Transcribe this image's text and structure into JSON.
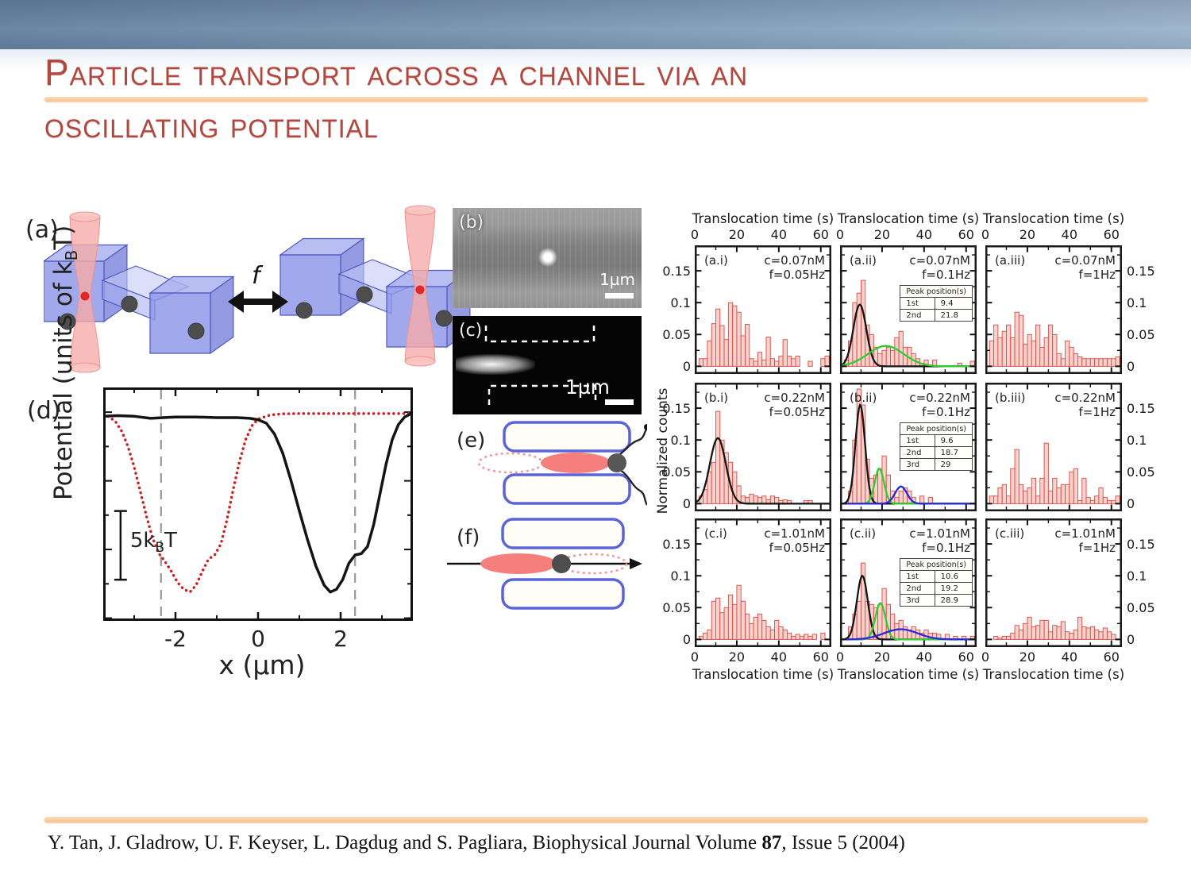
{
  "slide": {
    "title_line1": "Particle transport across a channel via an",
    "title_line2": "oscillating potential",
    "citation_prefix": "Y. Tan, J. Gladrow, U. F. Keyser, L. Dagdug and S. Pagliara, Biophysical Journal Volume ",
    "citation_volume": "87",
    "citation_suffix": ", Issue 5 (2004)",
    "title_color": "#b2473f",
    "accent_rule_color": "#f4bf8b",
    "header_colors": [
      "#64809f",
      "#9ab3ca"
    ]
  },
  "figure": {
    "panel_a": {
      "label": "(a)",
      "frequency_label": "f"
    },
    "panel_b": {
      "label": "(b)",
      "scalebar_label": "1µm"
    },
    "panel_c": {
      "label": "(c)",
      "scalebar_label": "1µm"
    },
    "panel_d": {
      "label": "(d)"
    },
    "panel_e": {
      "label": "(e)"
    },
    "panel_f": {
      "label": "(f)"
    }
  },
  "chart_data": [
    {
      "id": "optical-potential",
      "type": "line",
      "title": "",
      "xlabel": "x (µm)",
      "ylabel_pre": "Potential (units of k",
      "ylabel_sub": "B",
      "ylabel_post": "T)",
      "xlim": [
        -3.75,
        3.75
      ],
      "ylim": [
        -15.2,
        1.8
      ],
      "xticks": [
        {
          "v": -2,
          "label": "-2"
        },
        {
          "v": 0,
          "label": "0"
        },
        {
          "v": 2,
          "label": "2"
        }
      ],
      "xminor": [
        -3,
        -1,
        1,
        3
      ],
      "dashed_vlines": [
        -2.35,
        2.35
      ],
      "scale_bar": {
        "x": -3.33,
        "from": -7.2,
        "to": -12.2,
        "label_pre": "5k",
        "label_sub": "B",
        "label_post": "T"
      },
      "grid": false,
      "series": [
        {
          "name": "potential trap left (red dotted)",
          "color": "#cc2020",
          "style": "dotted",
          "points": [
            [
              -3.75,
              -0.2
            ],
            [
              -3.6,
              -0.35
            ],
            [
              -3.45,
              -0.7
            ],
            [
              -3.3,
              -1.4
            ],
            [
              -3.15,
              -2.5
            ],
            [
              -3.0,
              -4.0
            ],
            [
              -2.85,
              -5.8
            ],
            [
              -2.7,
              -7.6
            ],
            [
              -2.55,
              -9.2
            ],
            [
              -2.4,
              -10.3
            ],
            [
              -2.25,
              -10.9
            ],
            [
              -2.1,
              -11.6
            ],
            [
              -1.95,
              -12.4
            ],
            [
              -1.8,
              -12.9
            ],
            [
              -1.65,
              -13.1
            ],
            [
              -1.5,
              -12.6
            ],
            [
              -1.35,
              -11.6
            ],
            [
              -1.2,
              -10.7
            ],
            [
              -1.05,
              -10.4
            ],
            [
              -0.9,
              -9.6
            ],
            [
              -0.75,
              -7.8
            ],
            [
              -0.6,
              -5.6
            ],
            [
              -0.45,
              -3.6
            ],
            [
              -0.3,
              -2.0
            ],
            [
              -0.15,
              -1.0
            ],
            [
              0.0,
              -0.5
            ],
            [
              0.3,
              -0.2
            ],
            [
              0.6,
              -0.12
            ],
            [
              1.0,
              -0.1
            ],
            [
              1.5,
              -0.1
            ],
            [
              2.0,
              -0.1
            ],
            [
              2.5,
              -0.1
            ],
            [
              3.0,
              -0.1
            ],
            [
              3.5,
              -0.1
            ],
            [
              3.75,
              -0.1
            ]
          ]
        },
        {
          "name": "potential trap right (black solid)",
          "color": "#141414",
          "style": "solid",
          "points": [
            [
              -3.75,
              -0.3
            ],
            [
              -3.4,
              -0.25
            ],
            [
              -3.0,
              -0.3
            ],
            [
              -2.6,
              -0.45
            ],
            [
              -2.3,
              -0.4
            ],
            [
              -2.0,
              -0.35
            ],
            [
              -1.5,
              -0.35
            ],
            [
              -1.0,
              -0.4
            ],
            [
              -0.5,
              -0.4
            ],
            [
              -0.2,
              -0.45
            ],
            [
              0.0,
              -0.55
            ],
            [
              0.2,
              -0.8
            ],
            [
              0.4,
              -1.6
            ],
            [
              0.6,
              -3.0
            ],
            [
              0.8,
              -5.0
            ],
            [
              1.0,
              -7.2
            ],
            [
              1.2,
              -9.3
            ],
            [
              1.4,
              -11.2
            ],
            [
              1.6,
              -12.6
            ],
            [
              1.75,
              -13.1
            ],
            [
              1.9,
              -12.9
            ],
            [
              2.05,
              -12.2
            ],
            [
              2.2,
              -11.0
            ],
            [
              2.35,
              -10.4
            ],
            [
              2.5,
              -10.3
            ],
            [
              2.65,
              -9.8
            ],
            [
              2.8,
              -8.2
            ],
            [
              2.95,
              -6.0
            ],
            [
              3.1,
              -3.8
            ],
            [
              3.25,
              -2.0
            ],
            [
              3.4,
              -0.9
            ],
            [
              3.55,
              -0.35
            ],
            [
              3.7,
              -0.12
            ],
            [
              3.75,
              -0.05
            ]
          ]
        }
      ]
    },
    {
      "id": "translocation-histograms",
      "type": "bar",
      "xlabel": "Translocation time (s)",
      "ylabel": "Normalized counts",
      "xlim": [
        0,
        65
      ],
      "ylim": [
        -0.012,
        0.19
      ],
      "bin_width": 2,
      "xticks": [
        0,
        20,
        40,
        60
      ],
      "xminor": [
        10,
        30,
        50
      ],
      "yticks": [
        {
          "v": 0,
          "label": "0"
        },
        {
          "v": 0.05,
          "label": "0.05"
        },
        {
          "v": 0.1,
          "label": "0.1"
        },
        {
          "v": 0.15,
          "label": "0.15"
        }
      ],
      "yminor": [
        0.025,
        0.075,
        0.125,
        0.175
      ],
      "bar_fill": "#f9d2cd",
      "bar_edge": "#dc4a42",
      "panels": [
        {
          "label": "(a.i)",
          "conc": "c=0.07nM",
          "freq": "f=0.05Hz",
          "values": [
            0,
            0.012,
            0.012,
            0.04,
            0.067,
            0.09,
            0.064,
            0.042,
            0.1,
            0.095,
            0.085,
            0.048,
            0.066,
            0.012,
            0.008,
            0.022,
            0.01,
            0.046,
            0.012,
            0.008,
            0.016,
            0.042,
            0.016,
            0.012,
            0.016,
            0,
            0,
            0.008,
            0,
            0,
            0.012,
            0.016
          ]
        },
        {
          "label": "(a.ii)",
          "conc": "c=0.07nM",
          "freq": "f=0.1Hz",
          "values": [
            0,
            0.01,
            0.04,
            0.1,
            0.115,
            0.135,
            0.065,
            0.05,
            0.03,
            0.02,
            0.025,
            0.03,
            0.025,
            0.045,
            0.055,
            0.03,
            0.03,
            0.02,
            0.012,
            0.005,
            0.01,
            0,
            0.01,
            0,
            0,
            0,
            0,
            0,
            0.005,
            0,
            0,
            0.008
          ],
          "fits": [
            {
              "color": "#141414",
              "amp": 0.097,
              "center": 9.4,
              "sigma": 3.1
            },
            {
              "color": "#2ecc2e",
              "amp": 0.032,
              "center": 21.8,
              "sigma": 8.5
            }
          ],
          "peak_table": {
            "header": "Peak position(s)",
            "rows": [
              [
                "1st",
                "9.4"
              ],
              [
                "2nd",
                "21.8"
              ]
            ]
          }
        },
        {
          "label": "(a.iii)",
          "conc": "c=0.07nM",
          "freq": "f=1Hz",
          "values": [
            0,
            0.04,
            0.065,
            0.045,
            0.055,
            0.065,
            0.045,
            0.085,
            0.08,
            0.035,
            0.05,
            0.04,
            0.065,
            0.03,
            0.045,
            0.065,
            0.05,
            0.02,
            0.012,
            0.04,
            0.03,
            0.02,
            0.015,
            0.012,
            0.012,
            0.012,
            0.012,
            0.012,
            0.012,
            0.012,
            0.012,
            0.015
          ]
        },
        {
          "label": "(b.i)",
          "conc": "c=0.22nM",
          "freq": "f=0.05Hz",
          "values": [
            0,
            0.012,
            0.022,
            0.05,
            0.065,
            0.145,
            0.1,
            0.08,
            0.065,
            0.05,
            0.028,
            0.012,
            0.01,
            0.015,
            0.012,
            0.01,
            0.012,
            0.006,
            0.012,
            0.01,
            0.005,
            0.006,
            0.005,
            0,
            0,
            0,
            0.005,
            0.005,
            0,
            0,
            0,
            0
          ],
          "fits": [
            {
              "color": "#141414",
              "amp": 0.103,
              "center": 11,
              "sigma": 3.8
            }
          ]
        },
        {
          "label": "(b.ii)",
          "conc": "c=0.22nM",
          "freq": "f=0.1Hz",
          "values": [
            0,
            0,
            0.02,
            0.1,
            0.18,
            0.155,
            0.07,
            0.04,
            0.045,
            0.055,
            0.075,
            0.045,
            0.02,
            0.01,
            0.02,
            0.025,
            0.02,
            0.01,
            0,
            0.012,
            0,
            0.01,
            0,
            0,
            0,
            0,
            0,
            0,
            0,
            0,
            0,
            0
          ],
          "fits": [
            {
              "color": "#141414",
              "amp": 0.155,
              "center": 9.6,
              "sigma": 2.3
            },
            {
              "color": "#2ecc2e",
              "amp": 0.055,
              "center": 18.7,
              "sigma": 2.2
            },
            {
              "color": "#2828d8",
              "amp": 0.027,
              "center": 29,
              "sigma": 2.8
            }
          ],
          "peak_table": {
            "header": "Peak position(s)",
            "rows": [
              [
                "1st",
                "9.6"
              ],
              [
                "2nd",
                "18.7"
              ],
              [
                "3rd",
                "29"
              ]
            ]
          }
        },
        {
          "label": "(b.iii)",
          "conc": "c=0.22nM",
          "freq": "f=1Hz",
          "values": [
            0,
            0.012,
            0.012,
            0.025,
            0.03,
            0.012,
            0.055,
            0.085,
            0.03,
            0.02,
            0.025,
            0.04,
            0.012,
            0.04,
            0.095,
            0.02,
            0.04,
            0.025,
            0.03,
            0.03,
            0.05,
            0.055,
            0.005,
            0.04,
            0.01,
            0.005,
            0.012,
            0.025,
            0.01,
            0.005,
            0.005,
            0.012
          ]
        },
        {
          "label": "(c.i)",
          "conc": "c=1.01nM",
          "freq": "f=0.05Hz",
          "values": [
            0,
            0.005,
            0.01,
            0.015,
            0.06,
            0.065,
            0.042,
            0.05,
            0.07,
            0.055,
            0.085,
            0.06,
            0.04,
            0.025,
            0.035,
            0.04,
            0.03,
            0.02,
            0.015,
            0.03,
            0.02,
            0.015,
            0.01,
            0.005,
            0.008,
            0.005,
            0.008,
            0.005,
            0.008,
            0,
            0.01,
            0
          ]
        },
        {
          "label": "(c.ii)",
          "conc": "c=1.01nM",
          "freq": "f=0.1Hz",
          "values": [
            0,
            0,
            0.02,
            0.04,
            0.06,
            0.12,
            0.06,
            0.055,
            0.05,
            0.055,
            0.08,
            0.055,
            0.04,
            0.025,
            0.03,
            0.02,
            0.015,
            0.02,
            0.015,
            0.01,
            0.015,
            0.01,
            0.01,
            0.008,
            0,
            0.008,
            0,
            0.005,
            0,
            0.005,
            0,
            0.005
          ],
          "fits": [
            {
              "color": "#141414",
              "amp": 0.1,
              "center": 10.6,
              "sigma": 2.6
            },
            {
              "color": "#2ecc2e",
              "amp": 0.057,
              "center": 19.2,
              "sigma": 2.4
            },
            {
              "color": "#2828d8",
              "amp": 0.016,
              "center": 28.9,
              "sigma": 8
            }
          ],
          "peak_table": {
            "header": "Peak position(s)",
            "rows": [
              [
                "1st",
                "10.6"
              ],
              [
                "2nd",
                "19.2"
              ],
              [
                "3rd",
                "28.9"
              ]
            ]
          }
        },
        {
          "label": "(c.iii)",
          "conc": "c=1.01nM",
          "freq": "f=1Hz",
          "values": [
            0,
            0,
            0.005,
            0.002,
            0.005,
            0.005,
            0.01,
            0.022,
            0.015,
            0.025,
            0.035,
            0.02,
            0.022,
            0.03,
            0.03,
            0.012,
            0.022,
            0.02,
            0.028,
            0.012,
            0.01,
            0.015,
            0.035,
            0.02,
            0.018,
            0.02,
            0.015,
            0.012,
            0.018,
            0.012,
            0.008,
            0
          ]
        }
      ]
    }
  ]
}
